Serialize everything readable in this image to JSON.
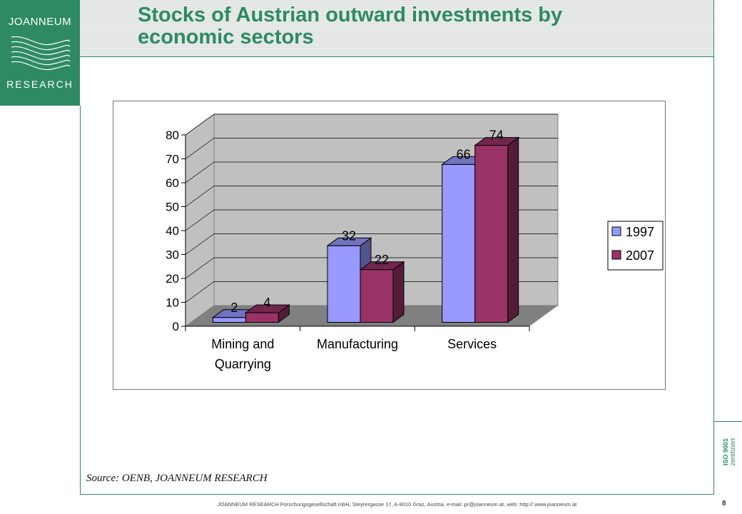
{
  "logo": {
    "top_text": "JOANNEUM",
    "bottom_text": "RESEARCH"
  },
  "title": "Stocks of Austrian outward investments by economic sectors",
  "source": "Source: OENB, JOANNEUM RESEARCH",
  "footer": "JOANNEUM RESEARCH Forschungsgesellschaft mbH, Steyrergasse 17, A-8010 Graz, Austria,   e-mail:  pr@joanneum.at,  web: http:// www.joanneum.at",
  "iso": {
    "line1": "ISO 9001",
    "line2": "zertifiziert"
  },
  "page_number": "8",
  "colors": {
    "brand_green": "#2e8a63",
    "series_1997": "#9999ff",
    "series_2007": "#993366",
    "plot_wall": "#c0c0c0",
    "plot_floor": "#808080"
  },
  "chart_data": {
    "type": "bar",
    "categories": [
      "Mining and Quarrying",
      "Manufacturing",
      "Services"
    ],
    "series": [
      {
        "name": "1997",
        "values": [
          2,
          32,
          66
        ]
      },
      {
        "name": "2007",
        "values": [
          4,
          22,
          74
        ]
      }
    ],
    "ylim": [
      0,
      80
    ],
    "yticks": [
      0,
      10,
      20,
      30,
      40,
      50,
      60,
      70,
      80
    ],
    "grid": true,
    "legend": "right",
    "style": "3d"
  }
}
